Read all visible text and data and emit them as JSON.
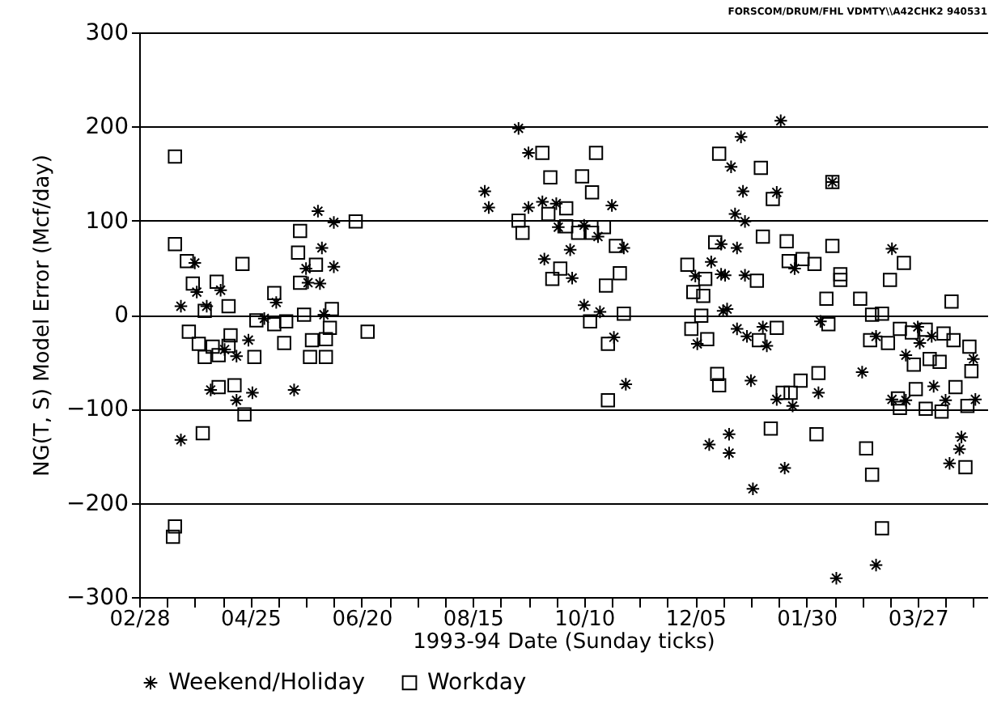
{
  "chart_data": {
    "type": "scatter",
    "xlabel": "1993-94 Date (Sunday ticks)",
    "ylabel": "NG(T, S) Model Error (Mcf/day)",
    "annotations": [
      "FORSCOM/DRUM/FHL VDMTY\\\\A42CHK2 940531"
    ],
    "xlim": [
      "1993-02-28",
      "1994-05-01"
    ],
    "xticks": [
      {
        "value": "1993-02-28",
        "label": "02/28"
      },
      {
        "value": "1993-03-14",
        "label": null
      },
      {
        "value": "1993-03-28",
        "label": null
      },
      {
        "value": "1993-04-11",
        "label": null
      },
      {
        "value": "1993-04-25",
        "label": "04/25"
      },
      {
        "value": "1993-05-09",
        "label": null
      },
      {
        "value": "1993-05-23",
        "label": null
      },
      {
        "value": "1993-06-06",
        "label": null
      },
      {
        "value": "1993-06-20",
        "label": "06/20"
      },
      {
        "value": "1993-07-04",
        "label": null
      },
      {
        "value": "1993-07-18",
        "label": null
      },
      {
        "value": "1993-08-01",
        "label": null
      },
      {
        "value": "1993-08-15",
        "label": "08/15"
      },
      {
        "value": "1993-08-29",
        "label": null
      },
      {
        "value": "1993-09-12",
        "label": null
      },
      {
        "value": "1993-09-26",
        "label": null
      },
      {
        "value": "1993-10-10",
        "label": "10/10"
      },
      {
        "value": "1993-10-24",
        "label": null
      },
      {
        "value": "1993-11-07",
        "label": null
      },
      {
        "value": "1993-11-21",
        "label": null
      },
      {
        "value": "1993-12-05",
        "label": "12/05"
      },
      {
        "value": "1993-12-19",
        "label": null
      },
      {
        "value": "1994-01-02",
        "label": null
      },
      {
        "value": "1994-01-16",
        "label": null
      },
      {
        "value": "1994-01-30",
        "label": "01/30"
      },
      {
        "value": "1994-02-13",
        "label": null
      },
      {
        "value": "1994-02-27",
        "label": null
      },
      {
        "value": "1994-03-13",
        "label": null
      },
      {
        "value": "1994-03-27",
        "label": "03/27"
      },
      {
        "value": "1994-04-10",
        "label": null
      },
      {
        "value": "1994-04-24",
        "label": null
      }
    ],
    "ylim": [
      -300,
      300
    ],
    "yticks": [
      -300,
      -200,
      -100,
      0,
      100,
      200,
      300
    ],
    "grid": "y",
    "legend": "bottom",
    "series": [
      {
        "name": "Weekend/Holiday",
        "color": "#000000",
        "marker": "cross",
        "x": [
          "1993-03-28",
          "1993-03-29",
          "1993-04-10",
          "1993-03-21",
          "1993-04-03",
          "1993-05-02",
          "1993-04-24",
          "1993-04-12",
          "1993-04-18",
          "1993-05-08",
          "1993-05-31",
          "1993-06-06",
          "1993-05-23",
          "1993-05-24",
          "1993-05-30",
          "1993-06-01",
          "1993-04-05",
          "1993-04-26",
          "1993-04-18",
          "1993-05-17",
          "1993-03-21",
          "1993-05-29",
          "1993-06-06",
          "1993-09-07",
          "1993-09-12",
          "1993-08-21",
          "1993-08-23",
          "1993-09-12",
          "1993-09-19",
          "1993-09-26",
          "1993-10-24",
          "1993-09-27",
          "1993-10-10",
          "1993-10-17",
          "1993-10-30",
          "1993-10-03",
          "1993-09-20",
          "1993-10-04",
          "1993-10-10",
          "1993-10-18",
          "1993-10-25",
          "1993-10-31",
          "1993-12-13",
          "1993-12-05",
          "1993-12-18",
          "1993-12-06",
          "1993-12-18",
          "1993-12-19",
          "1994-01-17",
          "1993-12-28",
          "1993-12-23",
          "1994-02-12",
          "1993-12-29",
          "1994-01-15",
          "1993-12-25",
          "1993-12-30",
          "1993-12-26",
          "1994-03-14",
          "1993-12-20",
          "1993-12-30",
          "1994-01-24",
          "1993-12-21",
          "1993-12-26",
          "1993-12-31",
          "1994-01-08",
          "1994-01-10",
          "1994-02-06",
          "1994-03-06",
          "1994-03-27",
          "1994-04-03",
          "1994-03-28",
          "1994-03-21",
          "1994-04-24",
          "1994-01-02",
          "1994-01-15",
          "1994-02-05",
          "1994-01-23",
          "1994-02-27",
          "1994-04-04",
          "1994-03-14",
          "1994-03-21",
          "1994-04-10",
          "1994-04-25",
          "1994-04-18",
          "1994-04-17",
          "1994-04-12",
          "1993-12-22",
          "1993-12-12",
          "1993-12-22",
          "1994-01-19",
          "1994-01-03",
          "1994-03-06",
          "1994-02-14"
        ],
        "values": [
          55,
          24,
          26,
          9,
          9,
          -4,
          -27,
          -37,
          -44,
          13,
          71,
          51,
          49,
          34,
          33,
          0,
          -80,
          -83,
          -91,
          -80,
          -133,
          110,
          98,
          198,
          172,
          131,
          114,
          114,
          120,
          118,
          116,
          93,
          95,
          83,
          71,
          69,
          59,
          39,
          10,
          3,
          -24,
          -74,
          56,
          41,
          43,
          -31,
          75,
          4,
          206,
          189,
          157,
          141,
          131,
          130,
          107,
          99,
          71,
          70,
          42,
          42,
          49,
          6,
          -15,
          -23,
          -13,
          -33,
          -7,
          -23,
          -13,
          -23,
          -30,
          -43,
          -47,
          -70,
          -90,
          -83,
          -97,
          -61,
          -76,
          -90,
          -91,
          -91,
          -90,
          -130,
          -143,
          -158,
          -127,
          -138,
          -147,
          -163,
          -185,
          -266,
          -280
        ]
      },
      {
        "name": "Workday",
        "color": "#000000",
        "marker": "square",
        "x": [
          "1993-03-18",
          "1993-03-18",
          "1993-03-24",
          "1993-04-21",
          "1993-03-27",
          "1993-04-08",
          "1993-04-14",
          "1993-04-02",
          "1993-03-25",
          "1993-03-30",
          "1993-04-02",
          "1993-04-06",
          "1993-04-09",
          "1993-04-15",
          "1993-04-14",
          "1993-04-27",
          "1993-05-07",
          "1993-04-28",
          "1993-05-07",
          "1993-05-13",
          "1993-05-22",
          "1993-05-12",
          "1993-05-26",
          "1993-06-02",
          "1993-06-04",
          "1993-06-05",
          "1993-05-25",
          "1993-06-02",
          "1993-06-23",
          "1993-04-17",
          "1993-04-09",
          "1993-04-22",
          "1993-04-01",
          "1993-03-18",
          "1993-03-17",
          "1993-05-19",
          "1993-05-28",
          "1993-05-20",
          "1993-05-20",
          "1993-06-17",
          "1993-09-19",
          "1993-10-16",
          "1993-09-23",
          "1993-10-09",
          "1993-10-14",
          "1993-10-01",
          "1993-09-07",
          "1993-09-09",
          "1993-09-22",
          "1993-10-01",
          "1993-10-07",
          "1993-10-20",
          "1993-10-14",
          "1993-10-26",
          "1993-09-28",
          "1993-09-24",
          "1993-10-28",
          "1993-10-21",
          "1993-10-30",
          "1993-10-13",
          "1993-10-22",
          "1993-10-22",
          "1993-12-17",
          "1993-12-15",
          "1993-12-01",
          "1993-12-10",
          "1993-12-04",
          "1993-12-09",
          "1993-12-08",
          "1993-12-03",
          "1993-12-11",
          "1993-12-16",
          "1993-12-17",
          "1994-01-07",
          "1994-02-12",
          "1994-01-13",
          "1994-01-08",
          "1994-01-20",
          "1994-02-12",
          "1994-03-20",
          "1994-01-05",
          "1994-01-21",
          "1994-01-28",
          "1994-02-03",
          "1994-02-16",
          "1994-02-16",
          "1994-03-13",
          "1994-02-09",
          "1994-02-26",
          "1994-04-13",
          "1994-03-04",
          "1994-03-09",
          "1994-01-15",
          "1994-01-06",
          "1994-02-10",
          "1994-03-03",
          "1994-03-12",
          "1994-03-18",
          "1994-03-24",
          "1994-03-31",
          "1994-04-09",
          "1994-04-14",
          "1994-04-22",
          "1994-03-25",
          "1994-04-02",
          "1994-04-07",
          "1994-04-23",
          "1994-01-27",
          "1994-02-05",
          "1994-01-18",
          "1994-01-22",
          "1994-03-26",
          "1994-04-15",
          "1994-03-17",
          "1994-03-18",
          "1994-03-31",
          "1994-04-08",
          "1994-04-21",
          "1994-01-12",
          "1994-02-04",
          "1994-03-01",
          "1994-03-04",
          "1994-04-20",
          "1994-03-09"
        ],
        "values": [
          168,
          75,
          57,
          54,
          33,
          35,
          9,
          4,
          -18,
          -31,
          -45,
          -34,
          -43,
          -22,
          -33,
          -45,
          23,
          -6,
          -10,
          -7,
          0,
          -30,
          -27,
          -26,
          -14,
          6,
          -45,
          -45,
          -18,
          -75,
          -77,
          -106,
          -126,
          -225,
          -236,
          66,
          53,
          34,
          89,
          99,
          172,
          172,
          146,
          147,
          130,
          113,
          100,
          87,
          107,
          94,
          87,
          93,
          87,
          73,
          49,
          38,
          44,
          31,
          1,
          -7,
          -31,
          -91,
          171,
          77,
          53,
          38,
          24,
          20,
          -1,
          -15,
          -26,
          -63,
          -75,
          156,
          141,
          123,
          83,
          78,
          73,
          55,
          36,
          57,
          59,
          54,
          43,
          37,
          37,
          17,
          17,
          14,
          0,
          1,
          -14,
          -27,
          -10,
          -27,
          -30,
          -15,
          -19,
          -16,
          -20,
          -27,
          -34,
          -53,
          -47,
          -50,
          -60,
          -70,
          -62,
          -83,
          -83,
          -79,
          -77,
          -89,
          -99,
          -100,
          -103,
          -97,
          -121,
          -127,
          -142,
          -170,
          -162,
          -227
        ]
      }
    ]
  }
}
